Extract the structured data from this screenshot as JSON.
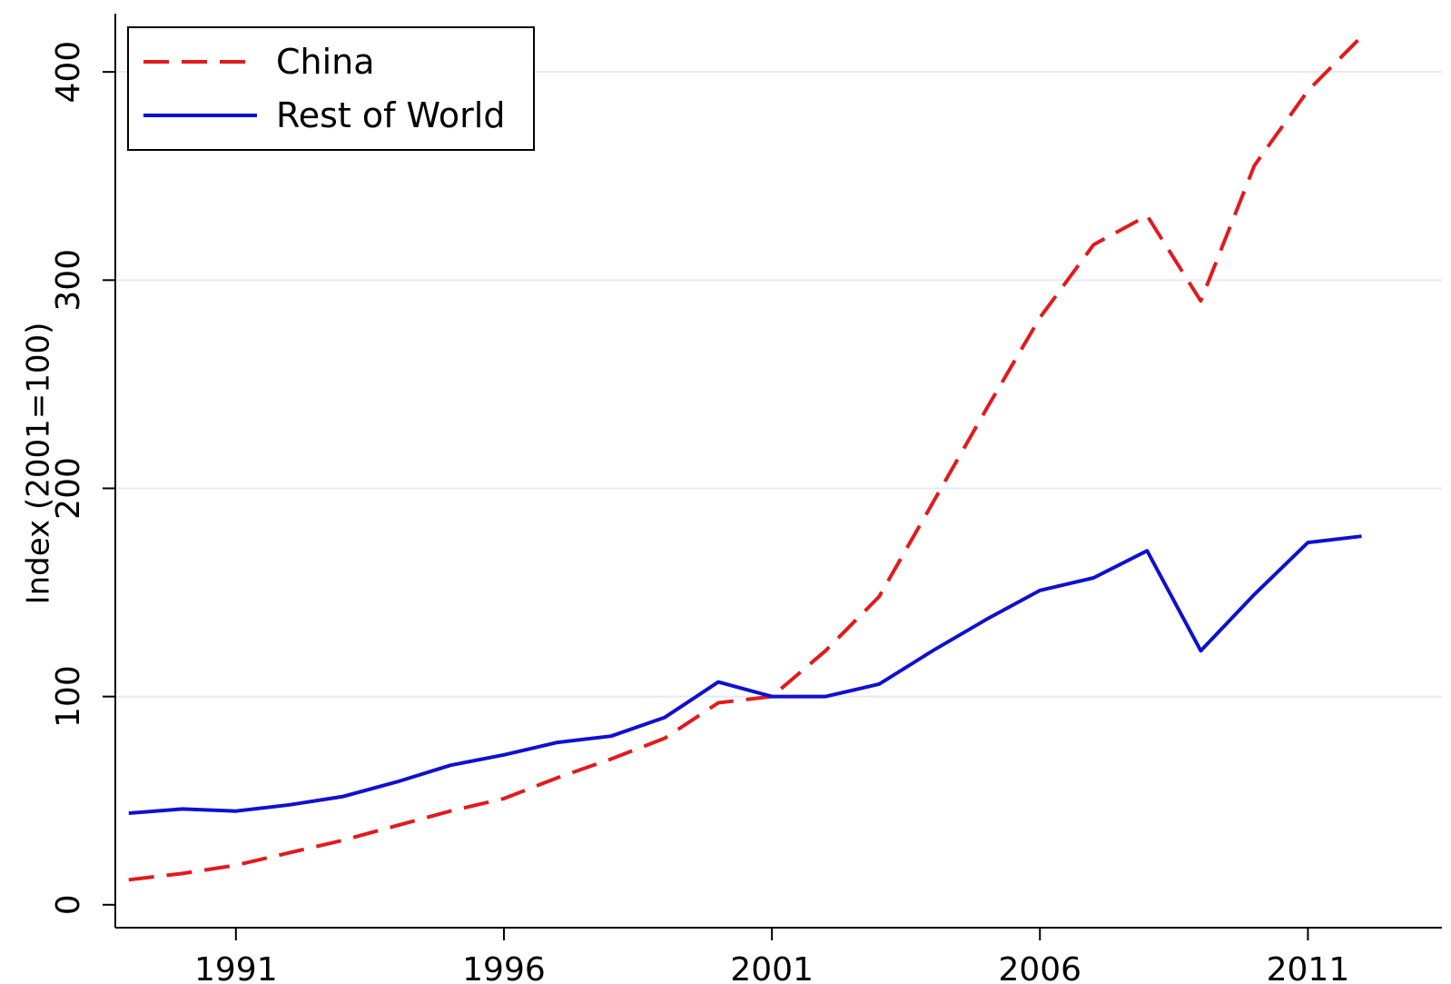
{
  "chart_data": {
    "type": "line",
    "title": "",
    "xlabel": "",
    "ylabel": "Index (2001=100)",
    "xlim": [
      1988.75,
      2013.5
    ],
    "ylim": [
      -11,
      428
    ],
    "x_ticks": [
      1991,
      1996,
      2001,
      2006,
      2011
    ],
    "y_ticks": [
      0,
      100,
      200,
      300,
      400
    ],
    "grid": "horizontal",
    "legend_position": "top-left",
    "x": [
      1989,
      1990,
      1991,
      1992,
      1993,
      1994,
      1995,
      1996,
      1997,
      1998,
      1999,
      2000,
      2001,
      2002,
      2003,
      2004,
      2005,
      2006,
      2007,
      2008,
      2009,
      2010,
      2011,
      2012
    ],
    "series": [
      {
        "name": "China",
        "color": "#e31a1c",
        "dash": "dashed",
        "values": [
          12,
          15,
          19,
          25,
          31,
          38,
          45,
          51,
          61,
          70,
          80,
          97,
          100,
          122,
          148,
          193,
          238,
          282,
          317,
          331,
          290,
          355,
          391,
          417
        ]
      },
      {
        "name": "Rest of World",
        "color": "#1010d0",
        "dash": "solid",
        "values": [
          44,
          46,
          45,
          48,
          52,
          59,
          67,
          72,
          78,
          81,
          90,
          107,
          100,
          100,
          106,
          122,
          137,
          151,
          157,
          170,
          122,
          149,
          174,
          177
        ]
      }
    ]
  }
}
